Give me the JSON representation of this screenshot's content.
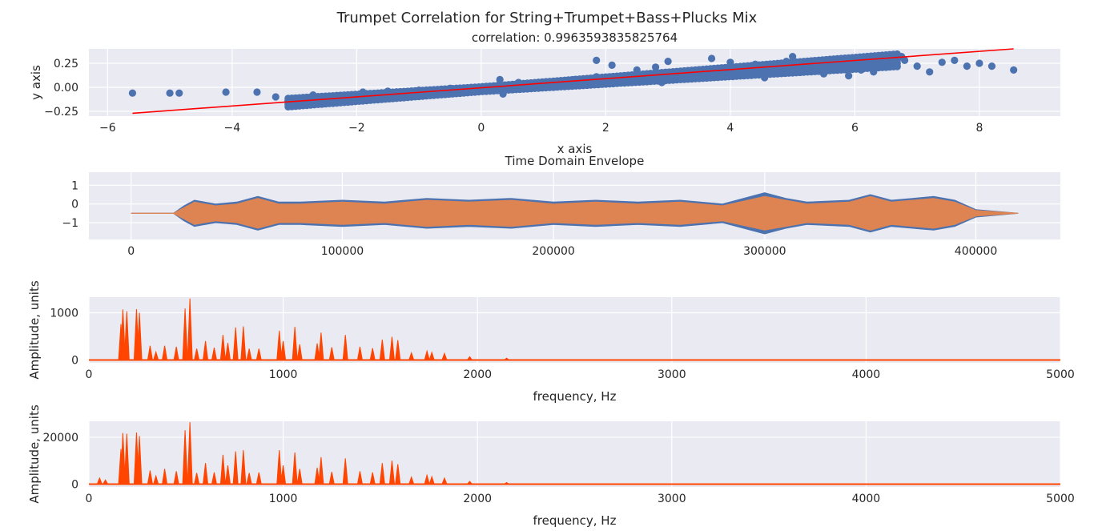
{
  "figure": {
    "title": "Trumpet Correlation for String+Trumpet+Bass+Plucks Mix",
    "background": "#ffffff",
    "axes_background": "#eaeaf2",
    "grid_color": "#ffffff"
  },
  "chart_data": [
    {
      "type": "scatter",
      "title": "correlation: 0.9963593835825764",
      "xlabel": "x axis",
      "ylabel": "y axis",
      "xlim": [
        -6.3,
        9.3
      ],
      "ylim": [
        -0.3,
        0.4
      ],
      "xticks": [
        -6,
        -4,
        -2,
        0,
        2,
        4,
        6,
        8
      ],
      "yticks": [
        -0.25,
        0.0,
        0.25
      ],
      "ytick_labels": [
        "−0.25",
        "0.00",
        "0.25"
      ],
      "xtick_labels": [
        "−6",
        "−4",
        "−2",
        "0",
        "2",
        "4",
        "6",
        "8"
      ],
      "grid": true,
      "point_color": "#4c72b0",
      "points": [
        [
          -5.6,
          -0.06
        ],
        [
          -5.0,
          -0.06
        ],
        [
          -4.85,
          -0.06
        ],
        [
          -4.1,
          -0.05
        ],
        [
          -3.6,
          -0.05
        ],
        [
          -3.3,
          -0.1
        ],
        [
          -3.1,
          -0.14
        ],
        [
          -2.7,
          -0.08
        ],
        [
          -2.3,
          -0.09
        ],
        [
          -1.9,
          -0.05
        ],
        [
          -1.5,
          -0.04
        ],
        [
          -1.0,
          -0.03
        ],
        [
          -0.5,
          -0.01
        ],
        [
          0.2,
          0.0
        ],
        [
          0.3,
          0.08
        ],
        [
          0.35,
          -0.07
        ],
        [
          0.6,
          0.05
        ],
        [
          1.0,
          0.05
        ],
        [
          1.5,
          0.08
        ],
        [
          1.85,
          0.11
        ],
        [
          1.85,
          0.28
        ],
        [
          2.1,
          0.23
        ],
        [
          2.3,
          0.07
        ],
        [
          2.5,
          0.18
        ],
        [
          2.8,
          0.21
        ],
        [
          2.9,
          0.05
        ],
        [
          3.0,
          0.27
        ],
        [
          3.3,
          0.14
        ],
        [
          3.5,
          0.11
        ],
        [
          3.7,
          0.3
        ],
        [
          3.9,
          0.16
        ],
        [
          4.0,
          0.26
        ],
        [
          4.4,
          0.24
        ],
        [
          4.55,
          0.1
        ],
        [
          4.7,
          0.14
        ],
        [
          4.9,
          0.27
        ],
        [
          5.0,
          0.32
        ],
        [
          5.2,
          0.23
        ],
        [
          5.5,
          0.14
        ],
        [
          5.6,
          0.29
        ],
        [
          5.9,
          0.12
        ],
        [
          6.1,
          0.18
        ],
        [
          6.3,
          0.16
        ],
        [
          6.5,
          0.26
        ],
        [
          6.75,
          0.32
        ],
        [
          6.8,
          0.28
        ],
        [
          7.0,
          0.22
        ],
        [
          7.2,
          0.16
        ],
        [
          7.4,
          0.26
        ],
        [
          7.6,
          0.28
        ],
        [
          7.8,
          0.22
        ],
        [
          8.0,
          0.25
        ],
        [
          8.2,
          0.22
        ],
        [
          8.55,
          0.18
        ]
      ],
      "fit_line": {
        "color": "#ff0000",
        "x": [
          -5.6,
          8.55
        ],
        "y": [
          -0.27,
          0.4
        ]
      }
    },
    {
      "type": "area",
      "title": "Time Domain Envelope",
      "xlim": [
        -20000,
        440000
      ],
      "ylim": [
        -1.9,
        1.7
      ],
      "xticks": [
        0,
        100000,
        200000,
        300000,
        400000
      ],
      "xtick_labels": [
        "0",
        "100000",
        "200000",
        "300000",
        "400000"
      ],
      "yticks": [
        -1,
        0,
        1
      ],
      "ytick_labels": [
        "−1",
        "0",
        "1"
      ],
      "grid": true,
      "series": [
        {
          "color": "#4c72b0",
          "x": [
            0,
            20000,
            25000,
            30000,
            40000,
            50000,
            60000,
            70000,
            80000,
            100000,
            120000,
            140000,
            160000,
            180000,
            200000,
            220000,
            240000,
            260000,
            280000,
            300000,
            310000,
            320000,
            340000,
            350000,
            360000,
            370000,
            380000,
            390000,
            400000,
            420000
          ],
          "upper": [
            0.0,
            0.0,
            0.4,
            0.7,
            0.5,
            0.6,
            0.9,
            0.6,
            0.6,
            0.7,
            0.6,
            0.8,
            0.7,
            0.8,
            0.6,
            0.7,
            0.6,
            0.7,
            0.5,
            1.1,
            0.8,
            0.6,
            0.7,
            1.0,
            0.7,
            0.8,
            0.9,
            0.7,
            0.2,
            0.0
          ],
          "lower": [
            0.0,
            0.0,
            -0.4,
            -0.7,
            -0.5,
            -0.6,
            -0.9,
            -0.6,
            -0.6,
            -0.7,
            -0.6,
            -0.8,
            -0.7,
            -0.8,
            -0.6,
            -0.7,
            -0.6,
            -0.7,
            -0.5,
            -1.1,
            -0.8,
            -0.6,
            -0.7,
            -1.0,
            -0.7,
            -0.8,
            -0.9,
            -0.7,
            -0.2,
            0.0
          ]
        },
        {
          "color": "#dd8452",
          "x": [
            0,
            20000,
            25000,
            30000,
            40000,
            50000,
            60000,
            70000,
            80000,
            100000,
            120000,
            140000,
            160000,
            180000,
            200000,
            220000,
            240000,
            260000,
            280000,
            300000,
            310000,
            320000,
            340000,
            350000,
            360000,
            370000,
            380000,
            390000,
            400000,
            420000
          ],
          "upper": [
            0.0,
            0.0,
            0.3,
            0.6,
            0.4,
            0.5,
            0.8,
            0.5,
            0.5,
            0.6,
            0.5,
            0.7,
            0.6,
            0.7,
            0.5,
            0.6,
            0.5,
            0.6,
            0.4,
            0.9,
            0.7,
            0.5,
            0.6,
            0.9,
            0.6,
            0.7,
            0.8,
            0.6,
            0.15,
            0.0
          ],
          "lower": [
            0.0,
            0.0,
            -0.3,
            -0.6,
            -0.4,
            -0.5,
            -0.8,
            -0.5,
            -0.5,
            -0.6,
            -0.5,
            -0.7,
            -0.6,
            -0.7,
            -0.5,
            -0.6,
            -0.5,
            -0.6,
            -0.4,
            -0.9,
            -0.7,
            -0.5,
            -0.6,
            -0.9,
            -0.6,
            -0.7,
            -0.8,
            -0.6,
            -0.15,
            0.0
          ]
        }
      ]
    },
    {
      "type": "line",
      "xlabel": "frequency, Hz",
      "ylabel": "Amplitude, units",
      "xlim": [
        0,
        5000
      ],
      "ylim": [
        -60,
        1330
      ],
      "xticks": [
        0,
        1000,
        2000,
        3000,
        4000,
        5000
      ],
      "xtick_labels": [
        "0",
        "1000",
        "2000",
        "3000",
        "4000",
        "5000"
      ],
      "yticks": [
        0,
        1000
      ],
      "ytick_labels": [
        "0",
        "1000"
      ],
      "grid": true,
      "line_color": "#ff4500",
      "peaks": [
        [
          165,
          760
        ],
        [
          175,
          1070
        ],
        [
          195,
          1030
        ],
        [
          245,
          1075
        ],
        [
          260,
          1000
        ],
        [
          315,
          300
        ],
        [
          345,
          170
        ],
        [
          390,
          300
        ],
        [
          450,
          280
        ],
        [
          495,
          1090
        ],
        [
          520,
          1300
        ],
        [
          555,
          240
        ],
        [
          600,
          400
        ],
        [
          645,
          260
        ],
        [
          690,
          530
        ],
        [
          715,
          360
        ],
        [
          755,
          690
        ],
        [
          795,
          710
        ],
        [
          825,
          240
        ],
        [
          875,
          240
        ],
        [
          980,
          620
        ],
        [
          1000,
          400
        ],
        [
          1060,
          700
        ],
        [
          1085,
          330
        ],
        [
          1175,
          350
        ],
        [
          1195,
          580
        ],
        [
          1250,
          270
        ],
        [
          1320,
          530
        ],
        [
          1395,
          280
        ],
        [
          1460,
          250
        ],
        [
          1510,
          430
        ],
        [
          1560,
          490
        ],
        [
          1590,
          420
        ],
        [
          1660,
          150
        ],
        [
          1740,
          190
        ],
        [
          1765,
          160
        ],
        [
          1830,
          140
        ],
        [
          1960,
          70
        ],
        [
          2150,
          40
        ]
      ]
    },
    {
      "type": "line",
      "xlabel": "frequency, Hz",
      "ylabel": "Amplitude, units",
      "xlim": [
        0,
        5000
      ],
      "ylim": [
        -1200,
        26800
      ],
      "xticks": [
        0,
        1000,
        2000,
        3000,
        4000,
        5000
      ],
      "xtick_labels": [
        "0",
        "1000",
        "2000",
        "3000",
        "4000",
        "5000"
      ],
      "yticks": [
        0,
        20000
      ],
      "ytick_labels": [
        "0",
        "20000"
      ],
      "grid": true,
      "line_color": "#ff4500",
      "peaks": [
        [
          55,
          2600
        ],
        [
          85,
          1800
        ],
        [
          165,
          15000
        ],
        [
          175,
          21800
        ],
        [
          195,
          21500
        ],
        [
          245,
          22000
        ],
        [
          260,
          20500
        ],
        [
          315,
          5800
        ],
        [
          345,
          3500
        ],
        [
          390,
          6500
        ],
        [
          450,
          5500
        ],
        [
          495,
          23000
        ],
        [
          520,
          26400
        ],
        [
          555,
          4800
        ],
        [
          600,
          9000
        ],
        [
          645,
          5000
        ],
        [
          690,
          12500
        ],
        [
          715,
          8000
        ],
        [
          755,
          14000
        ],
        [
          795,
          14500
        ],
        [
          825,
          4800
        ],
        [
          875,
          5000
        ],
        [
          980,
          14500
        ],
        [
          1000,
          8000
        ],
        [
          1060,
          13500
        ],
        [
          1085,
          6500
        ],
        [
          1175,
          7000
        ],
        [
          1195,
          11500
        ],
        [
          1250,
          5200
        ],
        [
          1320,
          11000
        ],
        [
          1395,
          5500
        ],
        [
          1460,
          5000
        ],
        [
          1510,
          9000
        ],
        [
          1560,
          10000
        ],
        [
          1590,
          8500
        ],
        [
          1660,
          3000
        ],
        [
          1740,
          3800
        ],
        [
          1765,
          3200
        ],
        [
          1830,
          2600
        ],
        [
          1960,
          1200
        ],
        [
          2150,
          700
        ]
      ]
    }
  ]
}
